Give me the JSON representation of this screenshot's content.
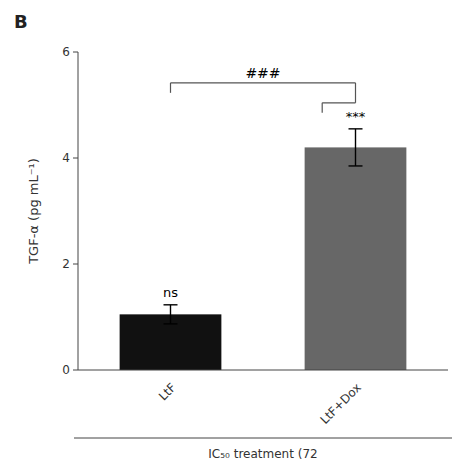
{
  "chart_data": {
    "type": "bar",
    "title": "B",
    "ylabel": "TGF-α (pg mL⁻¹)",
    "xlabel": "IC₅₀ treatment (72",
    "categories": [
      "LtF",
      "LtF+Dox"
    ],
    "values": [
      1.05,
      4.2
    ],
    "errors": [
      0.18,
      0.35
    ],
    "colors": [
      "#111111",
      "#676767"
    ],
    "ylim": [
      0,
      6
    ],
    "yticks": [
      0,
      2,
      4,
      6
    ],
    "grid": false,
    "annotations": [
      {
        "text": "ns",
        "category": "LtF"
      },
      {
        "text": "***",
        "category": "LtF+Dox"
      },
      {
        "text": "###",
        "between": [
          "LtF",
          "LtF+Dox"
        ]
      }
    ]
  }
}
